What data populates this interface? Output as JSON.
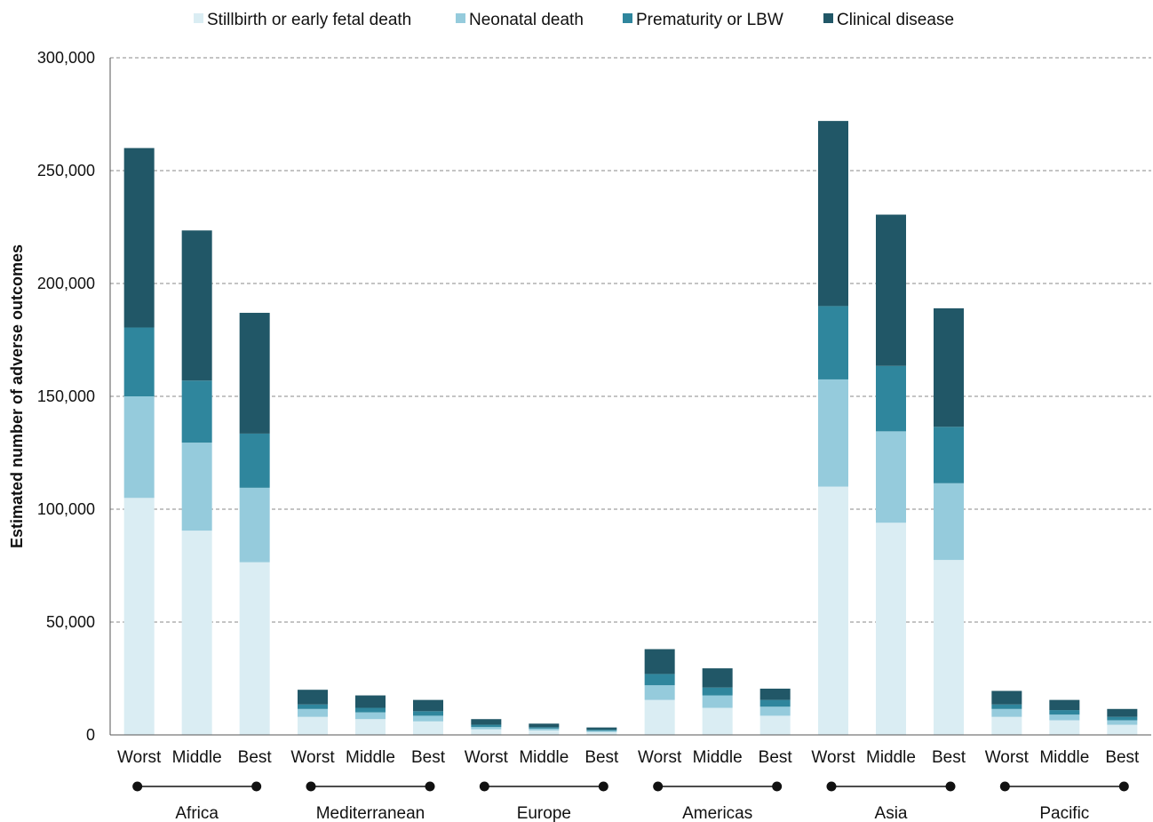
{
  "chart_data": {
    "type": "bar",
    "stacked": true,
    "title": "",
    "xlabel": "",
    "ylabel": "Estimated number of adverse outcomes",
    "ylim": [
      0,
      300000
    ],
    "yticks": [
      0,
      50000,
      100000,
      150000,
      200000,
      250000,
      300000
    ],
    "ytick_labels": [
      "0",
      "50,000",
      "100,000",
      "150,000",
      "200,000",
      "250,000",
      "300,000"
    ],
    "grid": "horizontal dashed",
    "legend_position": "top",
    "groups": [
      "Africa",
      "Mediterranean",
      "Europe",
      "Americas",
      "Asia",
      "Pacific"
    ],
    "scenarios": [
      "Worst",
      "Middle",
      "Best"
    ],
    "categories": [
      "Africa Worst",
      "Africa Middle",
      "Africa Best",
      "Mediterranean Worst",
      "Mediterranean Middle",
      "Mediterranean Best",
      "Europe Worst",
      "Europe Middle",
      "Europe Best",
      "Americas Worst",
      "Americas Middle",
      "Americas Best",
      "Asia Worst",
      "Asia Middle",
      "Asia Best",
      "Pacific Worst",
      "Pacific Middle",
      "Pacific Best"
    ],
    "series": [
      {
        "name": "Stillbirth or early fetal death",
        "color": "#daedf3",
        "values": [
          105000,
          90500,
          76500,
          8000,
          7000,
          6000,
          2500,
          2000,
          1300,
          15500,
          12000,
          8500,
          110000,
          94000,
          77500,
          8000,
          6500,
          4500
        ]
      },
      {
        "name": "Neonatal death",
        "color": "#95cbdc",
        "values": [
          45000,
          39000,
          33000,
          3500,
          3000,
          2500,
          1000,
          800,
          500,
          6500,
          5500,
          4000,
          47500,
          40500,
          34000,
          3500,
          2500,
          2000
        ]
      },
      {
        "name": "Prematurity or LBW",
        "color": "#2f869d",
        "values": [
          30500,
          27500,
          24000,
          2000,
          2000,
          2000,
          1000,
          600,
          500,
          5000,
          3500,
          3000,
          32500,
          29000,
          25000,
          2000,
          2000,
          1500
        ]
      },
      {
        "name": "Clinical disease",
        "color": "#215767",
        "values": [
          79500,
          66500,
          53500,
          6500,
          5500,
          5000,
          2500,
          1600,
          1000,
          11000,
          8500,
          5000,
          82000,
          67000,
          52500,
          6000,
          4500,
          3500
        ]
      }
    ]
  }
}
